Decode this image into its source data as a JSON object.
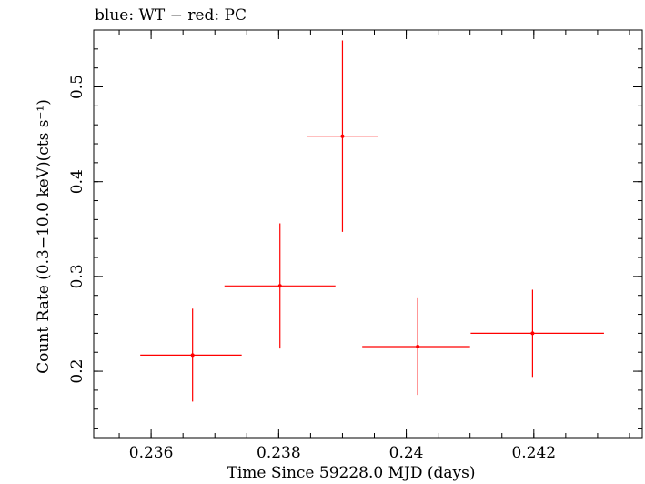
{
  "chart_data": {
    "type": "scatter",
    "top_label": "blue: WT − red: PC",
    "xlabel": "Time Since 59228.0 MJD (days)",
    "ylabel": "Count Rate (0.3−10.0 keV)(cts s⁻¹)",
    "xlim": [
      0.2351,
      0.2437
    ],
    "ylim": [
      0.13,
      0.56
    ],
    "x_major_ticks": [
      0.236,
      0.238,
      0.24,
      0.242
    ],
    "x_tick_labels": [
      "0.236",
      "0.238",
      "0.24",
      "0.242"
    ],
    "y_major_ticks": [
      0.2,
      0.3,
      0.4,
      0.5
    ],
    "y_tick_labels": [
      "0.2",
      "0.3",
      "0.4",
      "0.5"
    ],
    "x_minor_step": 0.0005,
    "y_minor_step": 0.02,
    "grid": false,
    "series": [
      {
        "color": "#ff0000",
        "points": [
          {
            "x": 0.23665,
            "xerr_lo": 0.00082,
            "xerr_hi": 0.00077,
            "y": 0.217,
            "yerr_lo": 0.049,
            "yerr_hi": 0.049
          },
          {
            "x": 0.23802,
            "xerr_lo": 0.00087,
            "xerr_hi": 0.00087,
            "y": 0.29,
            "yerr_lo": 0.066,
            "yerr_hi": 0.066
          },
          {
            "x": 0.239,
            "xerr_lo": 0.00056,
            "xerr_hi": 0.00056,
            "y": 0.448,
            "yerr_lo": 0.101,
            "yerr_hi": 0.101
          },
          {
            "x": 0.24018,
            "xerr_lo": 0.00087,
            "xerr_hi": 0.00082,
            "y": 0.226,
            "yerr_lo": 0.051,
            "yerr_hi": 0.051
          },
          {
            "x": 0.24198,
            "xerr_lo": 0.00097,
            "xerr_hi": 0.00112,
            "y": 0.24,
            "yerr_lo": 0.046,
            "yerr_hi": 0.046
          }
        ]
      }
    ]
  }
}
